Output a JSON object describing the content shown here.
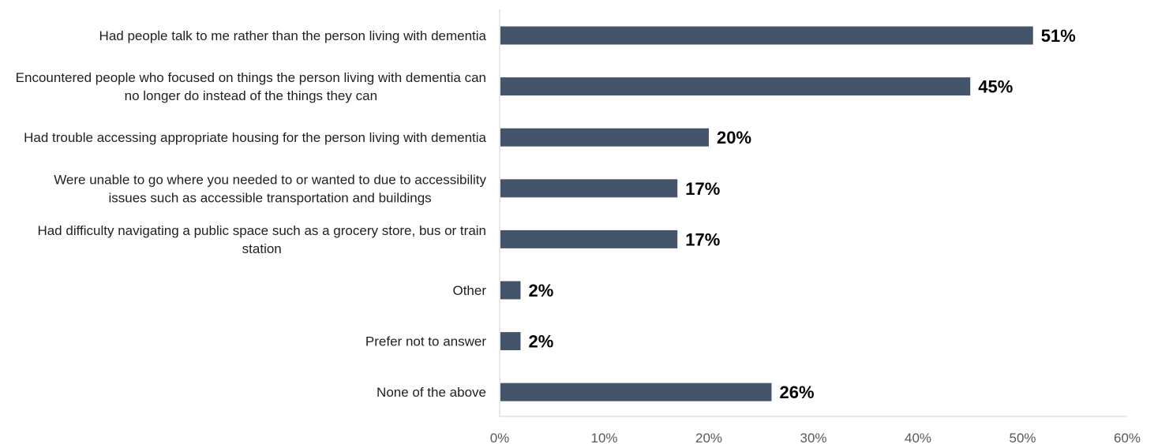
{
  "chart_data": {
    "type": "bar",
    "orientation": "horizontal",
    "categories": [
      [
        "Had people talk to me rather than the person living with dementia"
      ],
      [
        "Encountered people who focused on things the person living with dementia can",
        "no longer do instead of the things they can"
      ],
      [
        "Had trouble accessing appropriate housing for the person living with dementia"
      ],
      [
        "Were unable to go where you needed to or wanted to due to accessibility",
        "issues such as accessible transportation and buildings"
      ],
      [
        "Had difficulty navigating a public space such as a grocery store, bus or train",
        "station"
      ],
      [
        "Other"
      ],
      [
        "Prefer not to answer"
      ],
      [
        "None of the above"
      ]
    ],
    "values": [
      51,
      45,
      20,
      17,
      17,
      2,
      2,
      26
    ],
    "value_labels": [
      "51%",
      "45%",
      "20%",
      "17%",
      "17%",
      "2%",
      "2%",
      "26%"
    ],
    "x_ticks": [
      "0%",
      "10%",
      "20%",
      "30%",
      "40%",
      "50%",
      "60%"
    ],
    "xlim": [
      0,
      60
    ],
    "grid": false,
    "bar_color": "#44546A",
    "axis_color": "#D9D9D9"
  }
}
